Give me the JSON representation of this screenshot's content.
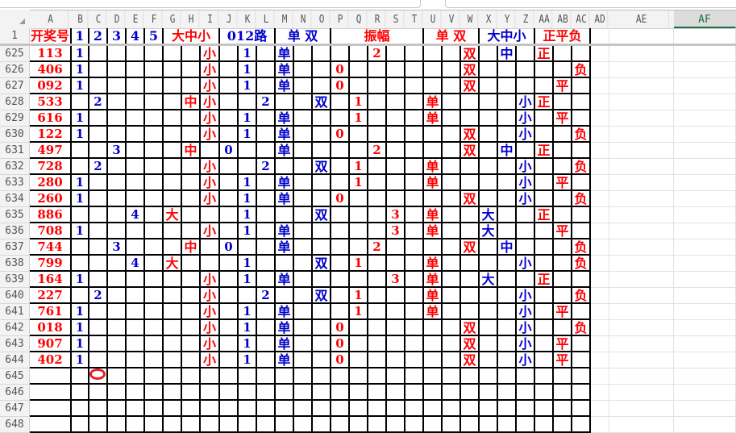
{
  "colors": {
    "red": "#ff0000",
    "blue": "#0000cc"
  },
  "column_letters": [
    "A",
    "B",
    "C",
    "D",
    "E",
    "F",
    "G",
    "H",
    "I",
    "J",
    "K",
    "L",
    "M",
    "N",
    "O",
    "P",
    "Q",
    "R",
    "S",
    "T",
    "U",
    "V",
    "W",
    "X",
    "Y",
    "Z",
    "AA",
    "AB",
    "AC",
    "AD",
    "AE",
    "AF"
  ],
  "selected_column": "AF",
  "column_colors": [
    "red",
    "blue",
    "blue",
    "blue",
    "blue",
    "blue",
    "red",
    "red",
    "red",
    "blue",
    "blue",
    "blue",
    "blue",
    "blue",
    "blue",
    "red",
    "red",
    "red",
    "red",
    "red",
    "red",
    "red",
    "red",
    "blue",
    "blue",
    "blue",
    "red",
    "red",
    "red"
  ],
  "header_row": {
    "number": "1",
    "groups": [
      {
        "label": "开奖号",
        "from": "A",
        "to": "A",
        "color": "red"
      },
      {
        "label": "1",
        "from": "B",
        "to": "B",
        "color": "blue"
      },
      {
        "label": "2",
        "from": "C",
        "to": "C",
        "color": "blue"
      },
      {
        "label": "3",
        "from": "D",
        "to": "D",
        "color": "blue"
      },
      {
        "label": "4",
        "from": "E",
        "to": "E",
        "color": "blue"
      },
      {
        "label": "5",
        "from": "F",
        "to": "F",
        "color": "blue"
      },
      {
        "label": "大中小",
        "from": "G",
        "to": "I",
        "color": "red"
      },
      {
        "label": "012路",
        "from": "J",
        "to": "L",
        "color": "blue"
      },
      {
        "label": "单 双",
        "from": "M",
        "to": "O",
        "color": "blue"
      },
      {
        "label": "振幅",
        "from": "P",
        "to": "T",
        "color": "red"
      },
      {
        "label": "单 双",
        "from": "U",
        "to": "W",
        "color": "red"
      },
      {
        "label": "大中小",
        "from": "X",
        "to": "Z",
        "color": "blue"
      },
      {
        "label": "正平负",
        "from": "AA",
        "to": "AC",
        "color": "red"
      }
    ]
  },
  "rows": [
    {
      "number": "625",
      "cells": {
        "A": "113",
        "B": "1",
        "I": "小",
        "K": "1",
        "M": "单",
        "R": "2",
        "W": "双",
        "Y": "中",
        "AA": "正"
      }
    },
    {
      "number": "626",
      "cells": {
        "A": "406",
        "B": "1",
        "I": "小",
        "K": "1",
        "M": "单",
        "P": "0",
        "W": "双",
        "AC": "负"
      }
    },
    {
      "number": "627",
      "cells": {
        "A": "092",
        "B": "1",
        "I": "小",
        "K": "1",
        "M": "单",
        "P": "0",
        "W": "双",
        "AB": "平"
      }
    },
    {
      "number": "628",
      "cells": {
        "A": "533",
        "C": "2",
        "H": "中",
        "I": "小",
        "L": "2",
        "O": "双",
        "Q": "1",
        "U": "单",
        "Z": "小",
        "AA": "正"
      }
    },
    {
      "number": "629",
      "cells": {
        "A": "616",
        "B": "1",
        "I": "小",
        "K": "1",
        "M": "单",
        "Q": "1",
        "U": "单",
        "Z": "小",
        "AB": "平"
      }
    },
    {
      "number": "630",
      "cells": {
        "A": "122",
        "B": "1",
        "I": "小",
        "K": "1",
        "M": "单",
        "P": "0",
        "W": "双",
        "Z": "小",
        "AC": "负"
      }
    },
    {
      "number": "631",
      "cells": {
        "A": "497",
        "D": "3",
        "H": "中",
        "J": "0",
        "M": "单",
        "R": "2",
        "W": "双",
        "Y": "中",
        "AA": "正"
      }
    },
    {
      "number": "632",
      "cells": {
        "A": "728",
        "C": "2",
        "I": "小",
        "L": "2",
        "O": "双",
        "Q": "1",
        "U": "单",
        "Z": "小",
        "AC": "负"
      }
    },
    {
      "number": "633",
      "cells": {
        "A": "280",
        "B": "1",
        "I": "小",
        "K": "1",
        "M": "单",
        "Q": "1",
        "U": "单",
        "Z": "小",
        "AB": "平"
      }
    },
    {
      "number": "634",
      "cells": {
        "A": "260",
        "B": "1",
        "I": "小",
        "K": "1",
        "M": "单",
        "P": "0",
        "W": "双",
        "Z": "小",
        "AC": "负"
      }
    },
    {
      "number": "635",
      "cells": {
        "A": "886",
        "E": "4",
        "G": "大",
        "K": "1",
        "O": "双",
        "S": "3",
        "U": "单",
        "X": "大",
        "AA": "正"
      }
    },
    {
      "number": "636",
      "cells": {
        "A": "708",
        "B": "1",
        "I": "小",
        "K": "1",
        "M": "单",
        "S": "3",
        "U": "单",
        "X": "大",
        "AB": "平"
      }
    },
    {
      "number": "637",
      "cells": {
        "A": "744",
        "D": "3",
        "H": "中",
        "J": "0",
        "M": "单",
        "R": "2",
        "W": "双",
        "Y": "中",
        "AC": "负"
      }
    },
    {
      "number": "638",
      "cells": {
        "A": "799",
        "E": "4",
        "G": "大",
        "K": "1",
        "O": "双",
        "Q": "1",
        "U": "单",
        "Z": "小",
        "AC": "负"
      }
    },
    {
      "number": "639",
      "cells": {
        "A": "164",
        "B": "1",
        "I": "小",
        "K": "1",
        "M": "单",
        "S": "3",
        "U": "单",
        "X": "大",
        "AA": "正"
      }
    },
    {
      "number": "640",
      "cells": {
        "A": "227",
        "C": "2",
        "I": "小",
        "L": "2",
        "O": "双",
        "Q": "1",
        "U": "单",
        "Z": "小",
        "AC": "负"
      }
    },
    {
      "number": "641",
      "cells": {
        "A": "761",
        "B": "1",
        "I": "小",
        "K": "1",
        "M": "单",
        "Q": "1",
        "U": "单",
        "Z": "小",
        "AB": "平"
      }
    },
    {
      "number": "642",
      "cells": {
        "A": "018",
        "B": "1",
        "I": "小",
        "K": "1",
        "M": "单",
        "P": "0",
        "W": "双",
        "Z": "小",
        "AC": "负"
      }
    },
    {
      "number": "643",
      "cells": {
        "A": "907",
        "B": "1",
        "I": "小",
        "K": "1",
        "M": "单",
        "P": "0",
        "W": "双",
        "Z": "小",
        "AB": "平"
      }
    },
    {
      "number": "644",
      "cells": {
        "A": "402",
        "B": "1",
        "I": "小",
        "K": "1",
        "M": "单",
        "P": "0",
        "W": "双",
        "Z": "小",
        "AB": "平"
      }
    },
    {
      "number": "645",
      "cells": {}
    },
    {
      "number": "646",
      "cells": {}
    },
    {
      "number": "647",
      "cells": {}
    },
    {
      "number": "648",
      "cells": {}
    }
  ]
}
